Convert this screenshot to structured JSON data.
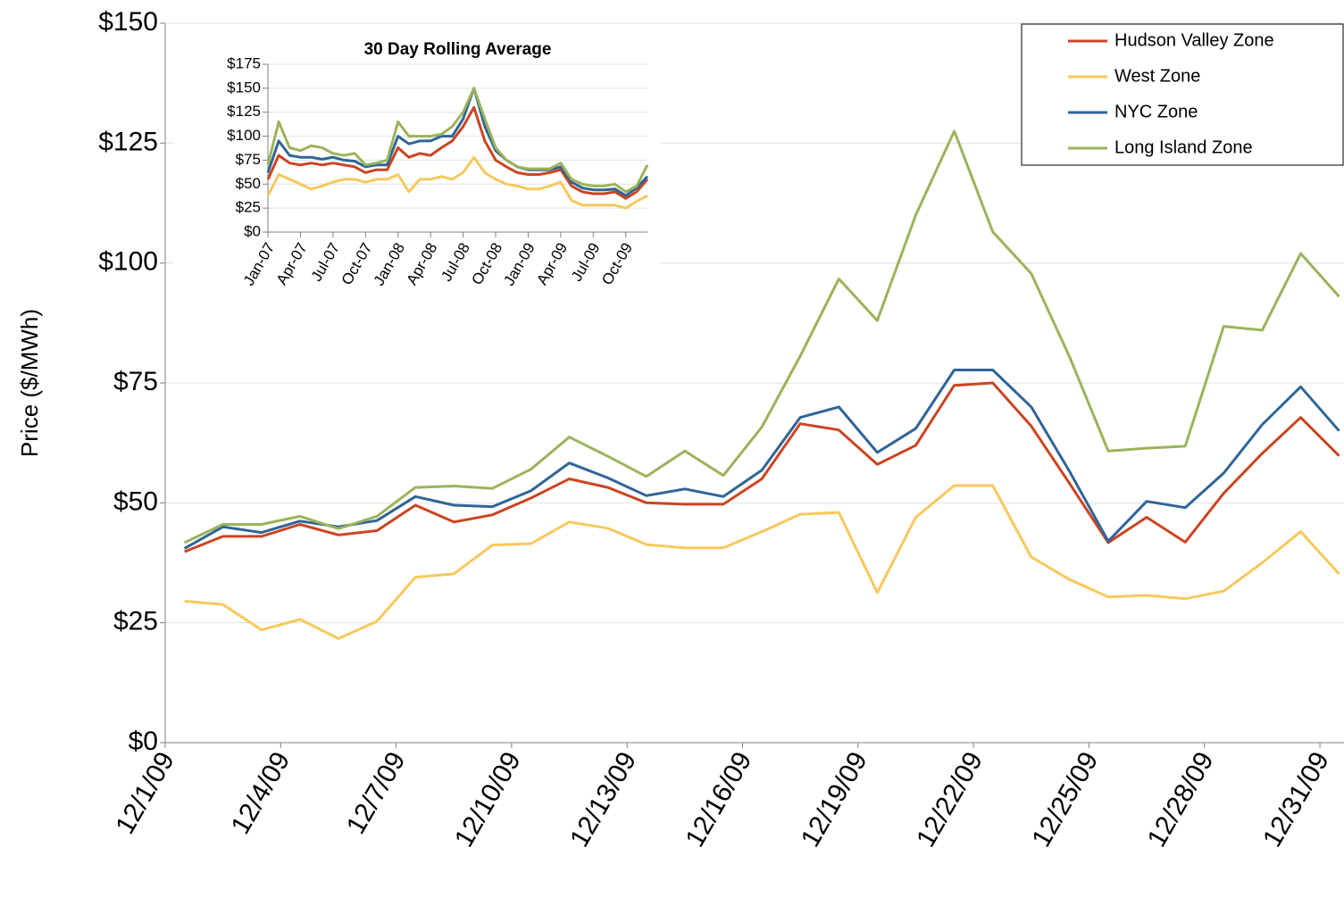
{
  "chart_data": [
    {
      "type": "line",
      "y_label": "Price ($/MWh)",
      "categories": [
        "12/1/09",
        null,
        null,
        "12/4/09",
        null,
        null,
        "12/7/09",
        null,
        null,
        "12/10/09",
        null,
        null,
        "12/13/09",
        null,
        null,
        "12/16/09",
        null,
        null,
        "12/19/09",
        null,
        null,
        "12/22/09",
        null,
        null,
        "12/25/09",
        null,
        null,
        "12/28/09",
        null,
        null,
        "12/31/09"
      ],
      "series": [
        {
          "name": "Hudson Valley Zone",
          "color": "#cc4420",
          "values": [
            39.8,
            43,
            43,
            45.5,
            43.3,
            44.2,
            49.5,
            46,
            47.5,
            51,
            55,
            53.2,
            50,
            49.7,
            49.7,
            55,
            66.5,
            65.2,
            58,
            62,
            74.5,
            75,
            66,
            54,
            41.7,
            47,
            41.8,
            52,
            60.3,
            67.8,
            59.8
          ]
        },
        {
          "name": "West Zone",
          "color": "#f8c85c",
          "values": [
            29.5,
            28.8,
            23.5,
            25.7,
            21.7,
            25.3,
            34.5,
            35.2,
            41.2,
            41.5,
            46,
            44.7,
            41.3,
            40.6,
            40.6,
            44,
            47.6,
            48,
            31.3,
            47,
            53.6,
            53.6,
            38.7,
            34,
            30.4,
            30.7,
            30,
            31.6,
            37.5,
            44,
            35.2
          ]
        },
        {
          "name": "NYC Zone",
          "color": "#2f6596",
          "values": [
            40.5,
            45,
            43.8,
            46.2,
            45,
            46.3,
            51.3,
            49.5,
            49.2,
            52.5,
            58.3,
            55.2,
            51.5,
            52.9,
            51.3,
            56.8,
            67.8,
            70,
            60.5,
            65.5,
            77.7,
            77.7,
            70,
            56.5,
            42,
            50.3,
            49,
            56.2,
            66.3,
            74.2,
            65
          ]
        },
        {
          "name": "Long Island Zone",
          "color": "#9bb35a",
          "values": [
            41.7,
            45.5,
            45.5,
            47.2,
            44.6,
            47.2,
            53.2,
            53.5,
            53,
            57,
            63.7,
            59.7,
            55.5,
            60.8,
            55.7,
            65.8,
            80.6,
            96.7,
            88,
            110,
            127.5,
            106.5,
            97.8,
            80.4,
            60.8,
            61.4,
            61.8,
            86.8,
            86,
            102,
            93
          ]
        }
      ],
      "ylim": [
        0,
        150
      ],
      "yticks": [
        {
          "value": 0,
          "label": "$0"
        },
        {
          "value": 25,
          "label": "$25"
        },
        {
          "value": 50,
          "label": "$50"
        },
        {
          "value": 75,
          "label": "$75"
        },
        {
          "value": 100,
          "label": "$100"
        },
        {
          "value": 125,
          "label": "$125"
        },
        {
          "value": 150,
          "label": "$150"
        }
      ],
      "grid": true,
      "legend": "upper right"
    },
    {
      "type": "line",
      "title": "30 Day Rolling Average",
      "categories": [
        "Jan-07",
        null,
        null,
        "Apr-07",
        null,
        null,
        "Jul-07",
        null,
        null,
        "Oct-07",
        null,
        null,
        "Jan-08",
        null,
        null,
        "Apr-08",
        null,
        null,
        "Jul-08",
        null,
        null,
        "Oct-08",
        null,
        null,
        "Jan-09",
        null,
        null,
        "Apr-09",
        null,
        null,
        "Jul-09",
        null,
        null,
        "Oct-09",
        null,
        null
      ],
      "series": [
        {
          "color": "#cc4420",
          "values": [
            55,
            80,
            72,
            70,
            72,
            70,
            72,
            70,
            68,
            62,
            65,
            65,
            88,
            78,
            82,
            80,
            88,
            95,
            110,
            130,
            95,
            75,
            68,
            62,
            60,
            60,
            62,
            65,
            48,
            42,
            40,
            40,
            42,
            35,
            42,
            55
          ]
        },
        {
          "color": "#f8c85c",
          "values": [
            38,
            60,
            55,
            50,
            45,
            48,
            52,
            55,
            55,
            52,
            55,
            55,
            60,
            42,
            55,
            55,
            58,
            55,
            62,
            78,
            62,
            55,
            50,
            48,
            45,
            45,
            48,
            52,
            33,
            28,
            28,
            28,
            28,
            25,
            32,
            38
          ]
        },
        {
          "color": "#2f6596",
          "values": [
            62,
            95,
            80,
            78,
            78,
            76,
            78,
            75,
            74,
            68,
            70,
            70,
            100,
            92,
            95,
            95,
            100,
            100,
            118,
            150,
            110,
            85,
            75,
            68,
            65,
            65,
            65,
            68,
            52,
            46,
            44,
            44,
            45,
            38,
            46,
            58
          ]
        },
        {
          "color": "#9bb35a",
          "values": [
            70,
            115,
            88,
            85,
            90,
            88,
            82,
            80,
            82,
            70,
            72,
            75,
            115,
            100,
            100,
            100,
            102,
            110,
            125,
            150,
            118,
            88,
            75,
            68,
            66,
            66,
            66,
            72,
            55,
            50,
            48,
            48,
            50,
            42,
            48,
            70
          ]
        }
      ],
      "ylim": [
        0,
        175
      ],
      "yticks": [
        {
          "value": 0,
          "label": "$0"
        },
        {
          "value": 25,
          "label": "$25"
        },
        {
          "value": 50,
          "label": "$50"
        },
        {
          "value": 75,
          "label": "$75"
        },
        {
          "value": 100,
          "label": "$100"
        },
        {
          "value": 125,
          "label": "$125"
        },
        {
          "value": 150,
          "label": "$150"
        },
        {
          "value": 175,
          "label": "$175"
        }
      ],
      "grid": true
    }
  ]
}
